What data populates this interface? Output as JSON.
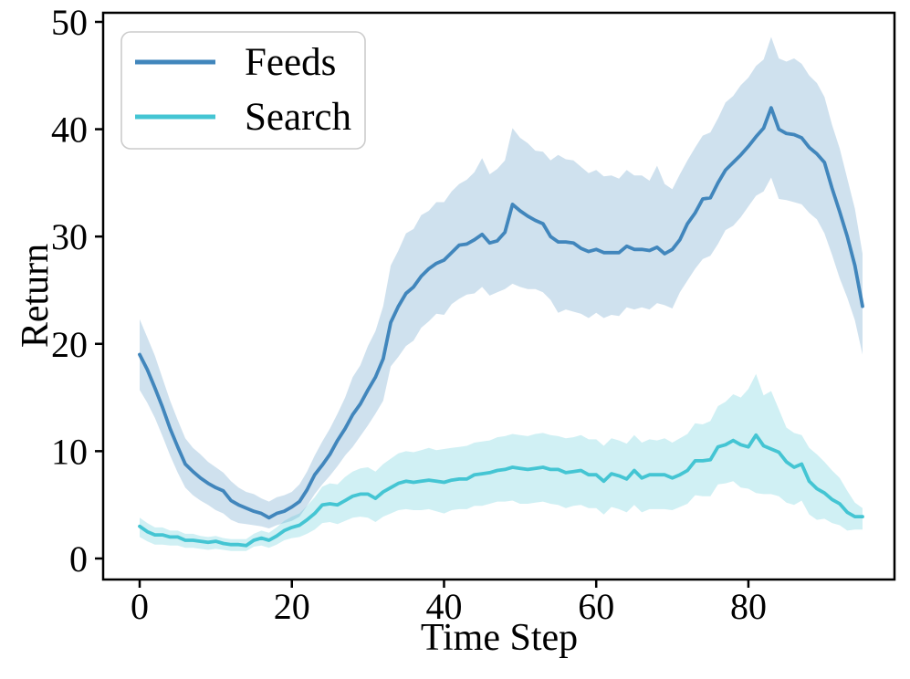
{
  "chart_data": {
    "type": "line",
    "title": "",
    "xlabel": "Time Step",
    "ylabel": "Return",
    "xlim": [
      -4.8,
      99.2
    ],
    "ylim": [
      -1.96,
      50.85
    ],
    "x_ticks": [
      0,
      20,
      40,
      60,
      80
    ],
    "y_ticks": [
      0,
      10,
      20,
      30,
      40,
      50
    ],
    "grid": false,
    "legend_position": "upper left",
    "band_opacity": 0.25,
    "x": [
      0,
      1,
      2,
      3,
      4,
      5,
      6,
      7,
      8,
      9,
      10,
      11,
      12,
      13,
      14,
      15,
      16,
      17,
      18,
      19,
      20,
      21,
      22,
      23,
      24,
      25,
      26,
      27,
      28,
      29,
      30,
      31,
      32,
      33,
      34,
      35,
      36,
      37,
      38,
      39,
      40,
      41,
      42,
      43,
      44,
      45,
      46,
      47,
      48,
      49,
      50,
      51,
      52,
      53,
      54,
      55,
      56,
      57,
      58,
      59,
      60,
      61,
      62,
      63,
      64,
      65,
      66,
      67,
      68,
      69,
      70,
      71,
      72,
      73,
      74,
      75,
      76,
      77,
      78,
      79,
      80,
      81,
      82,
      83,
      84,
      85,
      86,
      87,
      88,
      89,
      90,
      91,
      92,
      93,
      94,
      95
    ],
    "series": [
      {
        "name": "Feeds",
        "color": "#4186bc",
        "values": [
          19.0,
          17.6,
          15.9,
          14.1,
          12.1,
          10.4,
          8.8,
          8.1,
          7.5,
          7.0,
          6.6,
          6.3,
          5.4,
          5.0,
          4.7,
          4.4,
          4.2,
          3.8,
          4.2,
          4.4,
          4.8,
          5.3,
          6.4,
          7.8,
          8.7,
          9.7,
          11.0,
          12.1,
          13.4,
          14.4,
          15.7,
          16.9,
          18.6,
          22.0,
          23.5,
          24.7,
          25.3,
          26.3,
          27.0,
          27.5,
          27.8,
          28.5,
          29.2,
          29.3,
          29.7,
          30.2,
          29.4,
          29.6,
          30.4,
          33.0,
          32.4,
          31.9,
          31.5,
          31.2,
          30.0,
          29.5,
          29.5,
          29.4,
          28.9,
          28.6,
          28.8,
          28.5,
          28.5,
          28.5,
          29.1,
          28.8,
          28.8,
          28.7,
          29.0,
          28.4,
          28.8,
          29.7,
          31.2,
          32.2,
          33.5,
          33.6,
          35.0,
          36.2,
          36.9,
          37.6,
          38.4,
          39.3,
          40.1,
          42.0,
          40.0,
          39.6,
          39.5,
          39.2,
          38.3,
          37.7,
          36.9,
          34.5,
          32.3,
          30.0,
          27.3,
          23.5
        ],
        "band_upper": [
          22.3,
          20.6,
          18.9,
          16.8,
          14.7,
          12.9,
          11.2,
          10.3,
          9.7,
          9.0,
          8.5,
          8.0,
          7.2,
          6.6,
          6.2,
          6.0,
          5.6,
          5.3,
          5.7,
          5.9,
          6.2,
          6.9,
          8.1,
          9.6,
          10.9,
          12.1,
          13.5,
          15.0,
          16.9,
          18.0,
          19.8,
          21.2,
          23.5,
          27.3,
          28.7,
          30.3,
          30.7,
          32.0,
          32.4,
          33.2,
          33.2,
          34.2,
          34.9,
          35.3,
          36.0,
          37.3,
          35.8,
          36.3,
          37.1,
          40.1,
          39.2,
          38.7,
          38.0,
          37.9,
          37.1,
          37.6,
          37.2,
          37.1,
          36.5,
          35.9,
          36.2,
          35.6,
          35.7,
          35.4,
          36.2,
          35.7,
          35.7,
          35.2,
          36.6,
          34.9,
          34.4,
          35.8,
          37.1,
          38.3,
          39.4,
          39.7,
          41.0,
          42.5,
          43.1,
          44.1,
          44.8,
          45.9,
          46.5,
          48.6,
          46.6,
          46.3,
          46.6,
          46.1,
          45.0,
          44.3,
          43.0,
          40.4,
          38.2,
          35.4,
          32.6,
          28.4
        ],
        "band_lower": [
          15.7,
          14.5,
          13.1,
          11.4,
          9.6,
          8.0,
          6.6,
          5.9,
          5.4,
          5.0,
          4.5,
          4.2,
          3.6,
          3.3,
          3.2,
          3.1,
          3.0,
          2.8,
          3.1,
          3.3,
          3.5,
          3.9,
          4.9,
          6.0,
          6.9,
          7.7,
          8.6,
          9.6,
          10.4,
          11.4,
          12.4,
          13.5,
          14.7,
          17.9,
          18.8,
          19.8,
          20.3,
          21.5,
          22.1,
          22.8,
          22.7,
          23.7,
          24.2,
          24.6,
          24.7,
          25.3,
          24.5,
          24.8,
          25.1,
          25.6,
          25.3,
          25.1,
          25.1,
          24.8,
          24.1,
          22.9,
          23.2,
          23.0,
          22.8,
          22.4,
          22.9,
          22.4,
          22.7,
          22.6,
          23.4,
          23.2,
          23.4,
          23.2,
          23.8,
          23.6,
          23.3,
          24.8,
          25.9,
          27.0,
          27.9,
          28.2,
          29.3,
          30.6,
          31.0,
          31.8,
          32.8,
          33.8,
          34.2,
          35.5,
          33.5,
          33.4,
          33.2,
          33.0,
          32.2,
          31.6,
          30.3,
          28.3,
          26.1,
          24.3,
          22.2,
          19.0
        ]
      },
      {
        "name": "Search",
        "color": "#44c5d3",
        "values": [
          3.0,
          2.5,
          2.2,
          2.2,
          2.0,
          2.0,
          1.7,
          1.7,
          1.6,
          1.5,
          1.6,
          1.4,
          1.3,
          1.3,
          1.2,
          1.7,
          1.9,
          1.7,
          2.1,
          2.6,
          2.9,
          3.1,
          3.6,
          4.2,
          5.0,
          5.1,
          5.0,
          5.4,
          5.8,
          6.0,
          6.0,
          5.6,
          6.2,
          6.6,
          7.0,
          7.2,
          7.1,
          7.2,
          7.3,
          7.2,
          7.1,
          7.3,
          7.4,
          7.4,
          7.8,
          7.9,
          8.0,
          8.2,
          8.3,
          8.5,
          8.4,
          8.3,
          8.4,
          8.5,
          8.3,
          8.3,
          8.0,
          8.1,
          8.2,
          7.8,
          7.8,
          7.2,
          7.9,
          7.7,
          7.4,
          8.2,
          7.5,
          7.8,
          7.8,
          7.8,
          7.5,
          7.8,
          8.2,
          9.1,
          9.1,
          9.2,
          10.4,
          10.6,
          11.0,
          10.6,
          10.4,
          11.5,
          10.5,
          10.2,
          9.9,
          9.0,
          8.5,
          8.8,
          7.2,
          6.5,
          6.1,
          5.5,
          5.1,
          4.3,
          3.9,
          3.9
        ],
        "band_upper": [
          3.8,
          3.3,
          2.9,
          2.9,
          2.6,
          2.6,
          2.3,
          2.3,
          2.1,
          2.0,
          2.1,
          1.9,
          1.8,
          1.8,
          1.8,
          2.3,
          2.6,
          2.4,
          2.9,
          3.5,
          3.9,
          4.2,
          4.9,
          5.7,
          6.7,
          7.0,
          6.9,
          7.6,
          8.1,
          8.4,
          8.5,
          8.1,
          8.8,
          9.3,
          9.8,
          10.0,
          9.9,
          10.1,
          10.3,
          10.1,
          10.2,
          10.3,
          10.4,
          10.5,
          10.8,
          10.9,
          11.0,
          11.3,
          11.4,
          11.6,
          11.5,
          11.4,
          11.6,
          11.7,
          11.5,
          11.4,
          11.2,
          11.3,
          11.5,
          11.1,
          11.1,
          10.5,
          11.2,
          11.0,
          10.7,
          11.5,
          10.8,
          11.1,
          11.0,
          11.2,
          10.8,
          11.2,
          11.6,
          12.6,
          12.5,
          12.8,
          14.2,
          14.6,
          15.3,
          15.0,
          15.8,
          17.2,
          15.2,
          15.6,
          13.9,
          12.2,
          11.7,
          11.5,
          10.3,
          9.7,
          9.0,
          8.2,
          7.5,
          6.3,
          5.2,
          4.7
        ],
        "band_lower": [
          2.0,
          1.6,
          1.3,
          1.3,
          1.2,
          1.2,
          1.0,
          1.0,
          0.9,
          0.8,
          0.9,
          0.8,
          0.7,
          0.7,
          0.7,
          1.1,
          1.2,
          1.0,
          1.3,
          1.7,
          1.9,
          2.0,
          2.3,
          2.7,
          3.3,
          3.4,
          3.2,
          3.5,
          3.8,
          3.9,
          3.8,
          3.4,
          3.9,
          4.2,
          4.5,
          4.6,
          4.5,
          4.5,
          4.6,
          4.4,
          4.2,
          4.5,
          4.6,
          4.6,
          4.9,
          4.9,
          5.1,
          5.3,
          5.3,
          5.4,
          5.1,
          5.1,
          5.2,
          5.3,
          5.1,
          5.0,
          4.7,
          4.9,
          5.0,
          4.7,
          4.7,
          4.1,
          4.8,
          4.6,
          4.3,
          5.0,
          4.3,
          4.6,
          4.6,
          4.6,
          4.5,
          4.8,
          5.1,
          5.9,
          5.8,
          5.8,
          6.9,
          7.0,
          7.2,
          6.6,
          6.5,
          6.1,
          6.0,
          6.0,
          5.8,
          5.2,
          5.0,
          5.4,
          4.1,
          3.6,
          3.7,
          3.3,
          3.1,
          2.6,
          2.7,
          2.7
        ]
      }
    ]
  }
}
